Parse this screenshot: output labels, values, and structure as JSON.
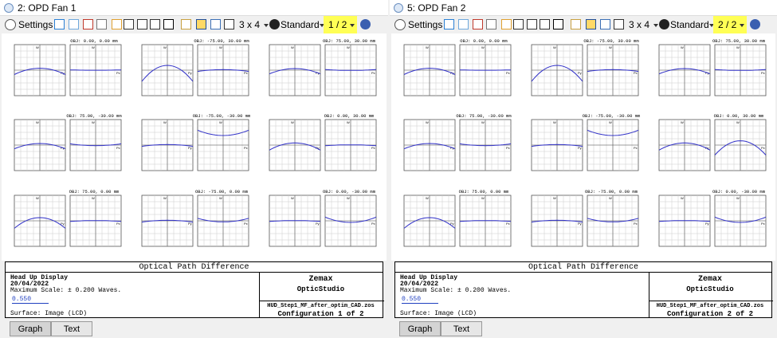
{
  "windows": [
    {
      "title": "2: OPD Fan 1",
      "toolbar": {
        "settings": "Settings",
        "layout": "3 x 4",
        "mode": "Standard",
        "page": "1 / 2"
      },
      "plots": [
        "OBJ: 0.00, 0.00 mm",
        "OBJ: -75.00, 30.00 mm",
        "OBJ: 75.00, 30.00 mm",
        "OBJ: 75.00, -30.00 mm",
        "OBJ: -75.00, -30.00 mm",
        "OBJ: 0.00, 30.00 mm",
        "OBJ: 75.00, 0.00 mm",
        "OBJ: -75.00, 0.00 mm",
        "OBJ: 0.00, -30.00 mm"
      ],
      "axis_labels": {
        "w": "W",
        "py": "Py",
        "px": "Px"
      },
      "info": {
        "heading": "Optical Path Difference",
        "name": "Head Up Display",
        "date": "20/04/2022",
        "scale": "Maximum Scale: ± 0.200 Waves.",
        "wavelength": "0.550",
        "surface": "Surface: Image (LCD)",
        "brand": "Zemax",
        "product": "OpticStudio",
        "file": "HUD_Step1_MF_after_optim_CAD.zos",
        "config": "Configuration 1 of 2"
      },
      "tabs": [
        "Graph",
        "Text"
      ]
    },
    {
      "title": "5: OPD Fan 2",
      "toolbar": {
        "settings": "Settings",
        "layout": "3 x 4",
        "mode": "Standard",
        "page": "2 / 2"
      },
      "plots": [
        "OBJ: 0.00, 0.00 mm",
        "OBJ: -75.00, 30.00 mm",
        "OBJ: 75.00, 30.00 mm",
        "OBJ: 75.00, -30.00 mm",
        "OBJ: -75.00, -30.00 mm",
        "OBJ: 0.00, 30.00 mm",
        "OBJ: 75.00, 0.00 mm",
        "OBJ: -75.00, 0.00 mm",
        "OBJ: 0.00, -30.00 mm"
      ],
      "axis_labels": {
        "w": "W",
        "py": "Py",
        "px": "Px"
      },
      "info": {
        "heading": "Optical Path Difference",
        "name": "Head Up Display",
        "date": "20/04/2022",
        "scale": "Maximum Scale: ± 0.200 Waves.",
        "wavelength": "0.550",
        "surface": "Surface: Image (LCD)",
        "brand": "Zemax",
        "product": "OpticStudio",
        "file": "HUD_Step1_MF_after_optim_CAD.zos",
        "config": "Configuration 2 of 2"
      },
      "tabs": [
        "Graph",
        "Text"
      ]
    }
  ]
}
